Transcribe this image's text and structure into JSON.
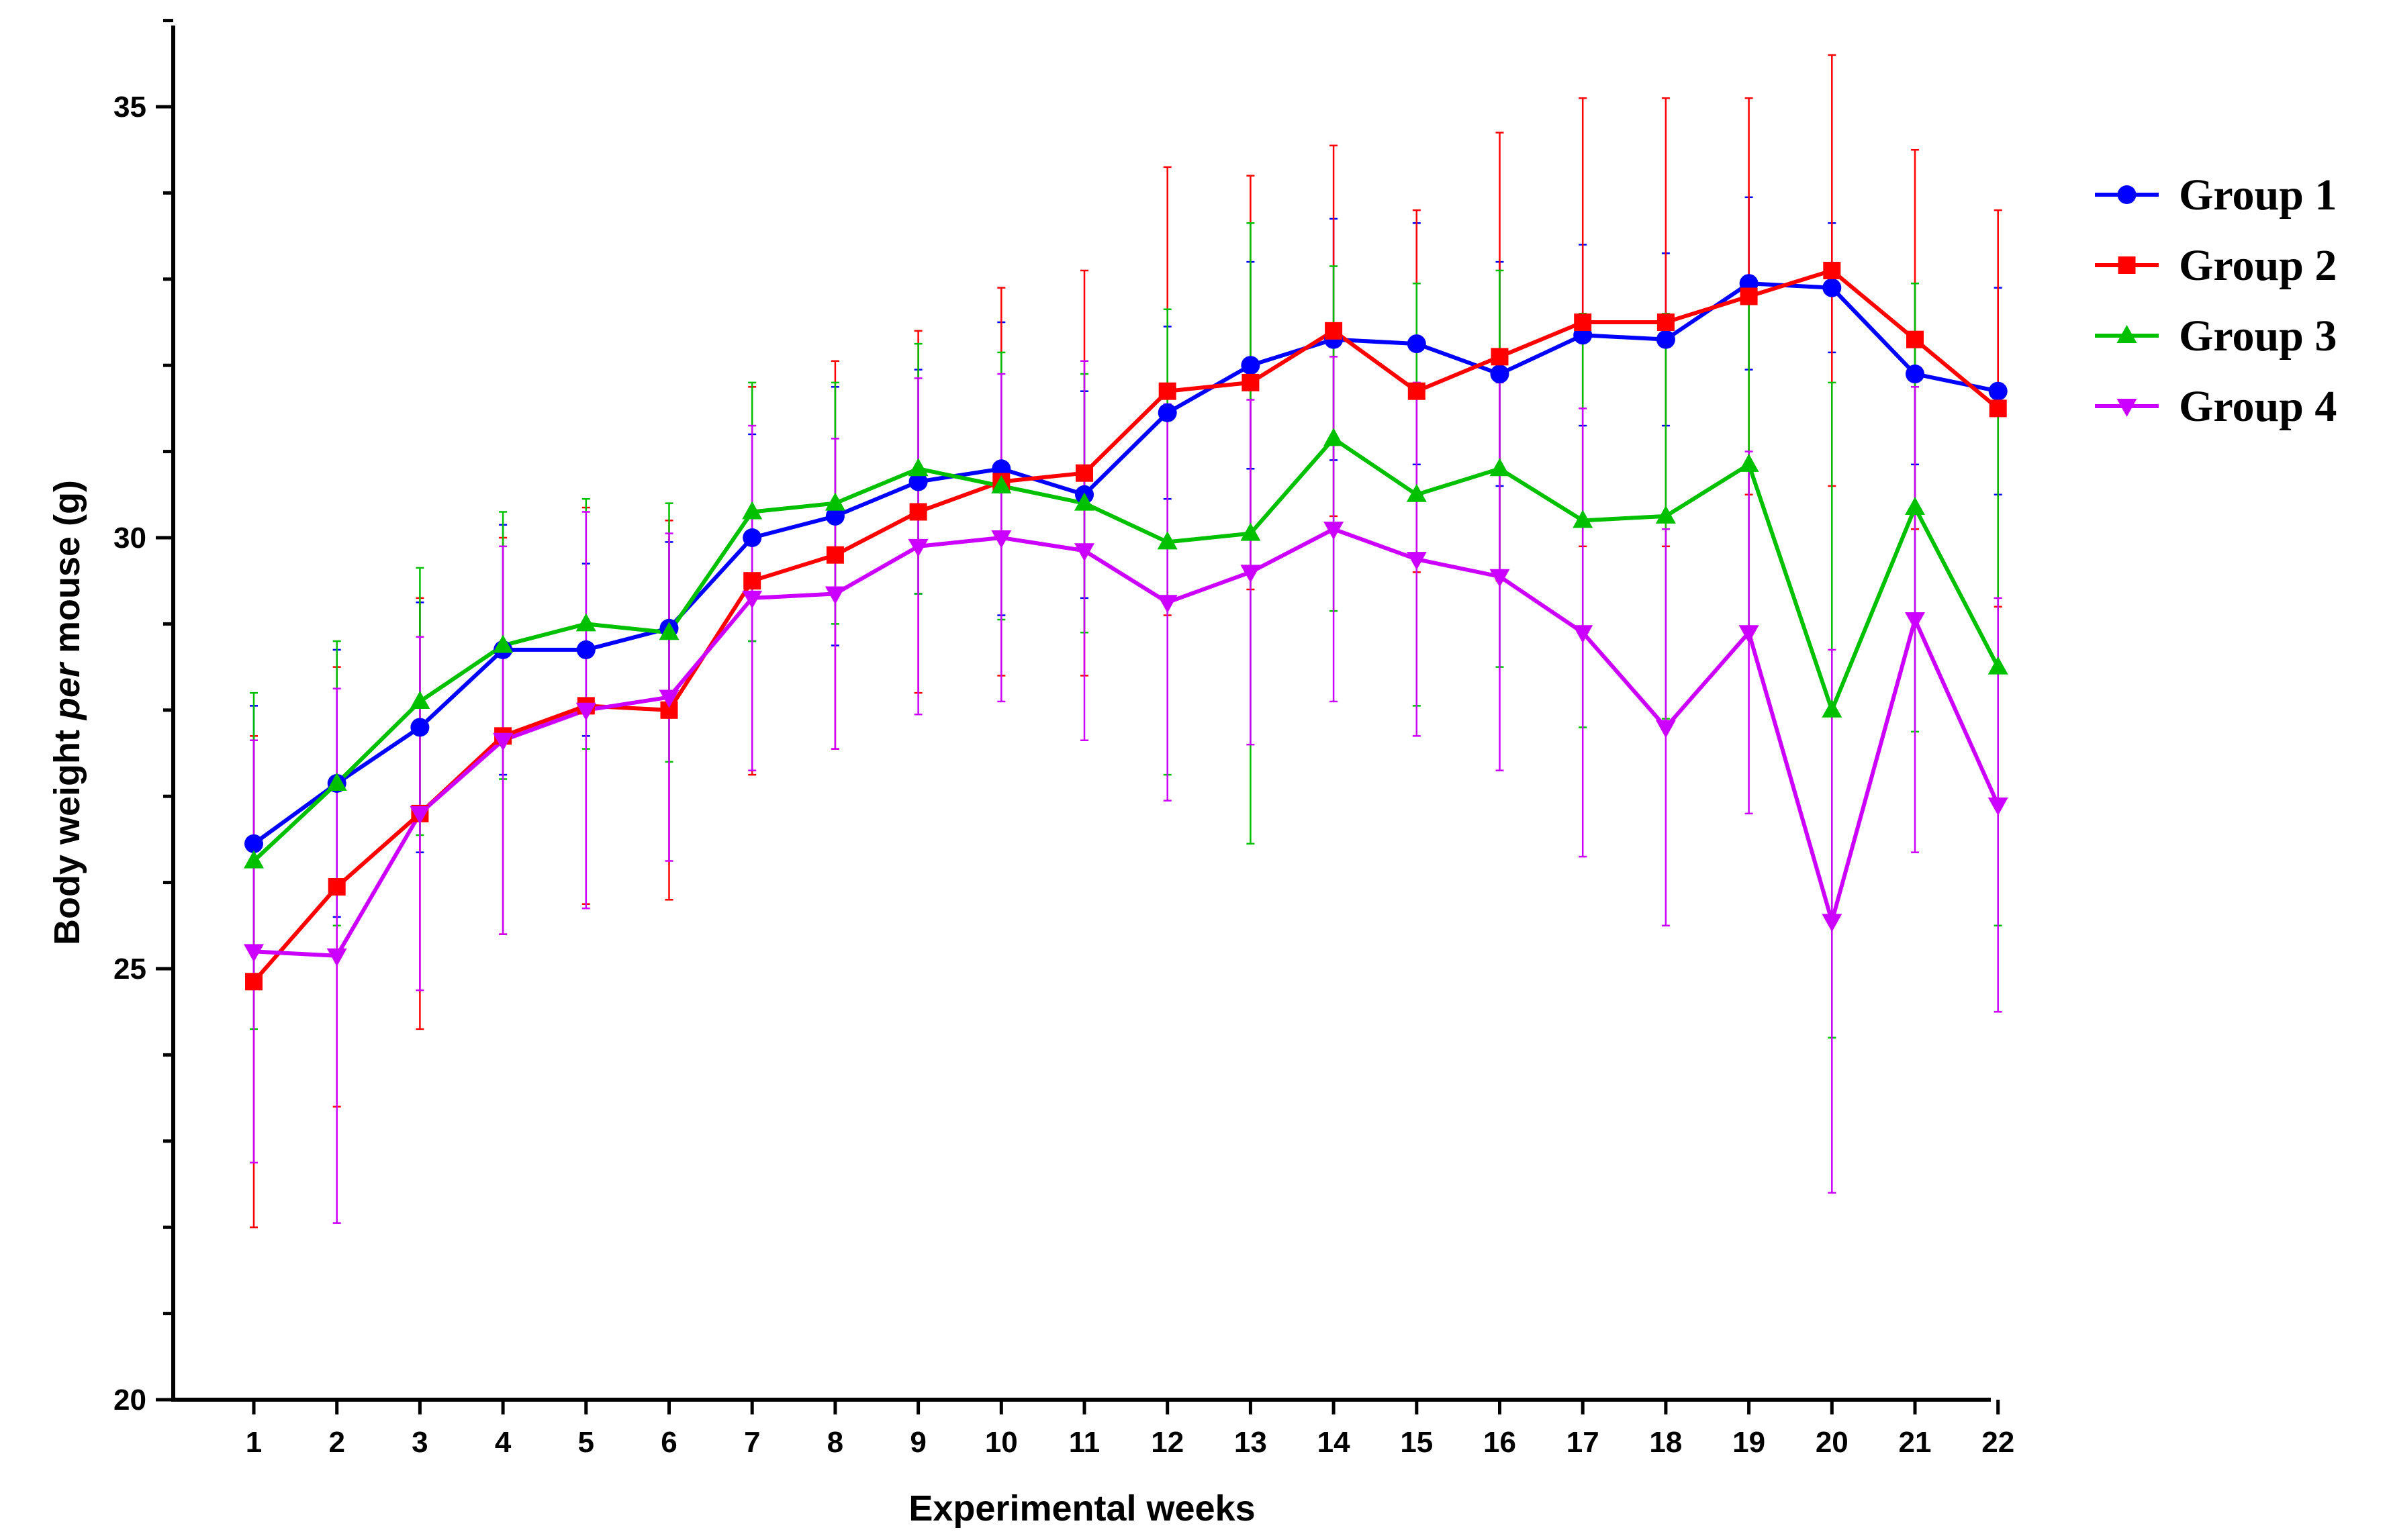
{
  "chart_data": {
    "type": "line",
    "xlabel": "Experimental weeks",
    "ylabel_parts": [
      "Body weight ",
      "per",
      " mouse (g)"
    ],
    "xlim": [
      0,
      22
    ],
    "ylim": [
      20,
      36
    ],
    "x": [
      1,
      2,
      3,
      4,
      5,
      6,
      7,
      8,
      9,
      10,
      11,
      12,
      13,
      14,
      15,
      16,
      17,
      18,
      19,
      20,
      21,
      22
    ],
    "x_ticks": [
      "1",
      "2",
      "3",
      "4",
      "5",
      "6",
      "7",
      "8",
      "9",
      "10",
      "11",
      "12",
      "13",
      "14",
      "15",
      "16",
      "17",
      "18",
      "19",
      "20",
      "21",
      "22"
    ],
    "y_ticks": [
      20,
      25,
      30,
      35
    ],
    "y_tick_labels": [
      "20",
      "25",
      "30",
      "35"
    ],
    "grid": false,
    "legend_position": "right",
    "series": [
      {
        "name": "Group 1",
        "color": "#0000ff",
        "marker": "circle",
        "values": [
          26.45,
          27.15,
          27.8,
          28.7,
          28.7,
          28.95,
          30.0,
          30.25,
          30.65,
          30.8,
          30.5,
          31.45,
          32.0,
          32.3,
          32.25,
          31.9,
          32.35,
          32.3,
          32.95,
          32.9,
          31.9,
          31.7
        ],
        "errors": [
          1.6,
          1.55,
          1.45,
          1.45,
          1.0,
          1.0,
          1.2,
          1.5,
          1.3,
          1.7,
          1.2,
          1.0,
          1.2,
          1.4,
          1.4,
          1.3,
          1.05,
          1.0,
          1.0,
          0.75,
          1.05,
          1.2
        ]
      },
      {
        "name": "Group 2",
        "color": "#ff0000",
        "marker": "square",
        "values": [
          24.85,
          25.95,
          26.8,
          27.7,
          28.05,
          28.0,
          29.5,
          29.8,
          30.3,
          30.65,
          30.75,
          31.7,
          31.8,
          32.4,
          31.7,
          32.1,
          32.5,
          32.5,
          32.8,
          33.1,
          32.3,
          31.5
        ],
        "errors": [
          2.85,
          2.55,
          2.5,
          2.3,
          2.3,
          2.2,
          2.25,
          2.25,
          2.1,
          2.25,
          2.35,
          2.6,
          2.4,
          2.15,
          2.1,
          2.6,
          2.6,
          2.6,
          2.3,
          2.5,
          2.2,
          2.3
        ]
      },
      {
        "name": "Group 3",
        "color": "#00c000",
        "marker": "triangle-up",
        "values": [
          26.25,
          27.15,
          28.1,
          28.75,
          29.0,
          28.9,
          30.3,
          30.4,
          30.8,
          30.6,
          30.4,
          29.95,
          30.05,
          31.15,
          30.5,
          30.8,
          30.2,
          30.25,
          30.85,
          28.0,
          30.35,
          28.5
        ],
        "errors": [
          1.95,
          1.65,
          1.55,
          1.55,
          1.45,
          1.5,
          1.5,
          1.4,
          1.45,
          1.55,
          1.5,
          2.7,
          3.6,
          2.0,
          2.45,
          2.3,
          2.4,
          2.35,
          1.9,
          3.8,
          2.6,
          3.0
        ]
      },
      {
        "name": "Group 4",
        "color": "#cc00ff",
        "marker": "triangle-down",
        "values": [
          25.2,
          25.15,
          26.8,
          27.65,
          28.0,
          28.15,
          29.3,
          29.35,
          29.9,
          30.0,
          29.85,
          29.25,
          29.6,
          30.1,
          29.75,
          29.55,
          28.9,
          27.8,
          28.9,
          25.55,
          29.05,
          26.9
        ],
        "errors": [
          2.45,
          3.1,
          2.05,
          2.25,
          2.3,
          1.9,
          2.0,
          1.8,
          1.95,
          1.9,
          2.2,
          2.3,
          2.0,
          2.0,
          2.05,
          2.25,
          2.6,
          2.3,
          2.1,
          3.15,
          2.7,
          2.4
        ]
      }
    ]
  }
}
